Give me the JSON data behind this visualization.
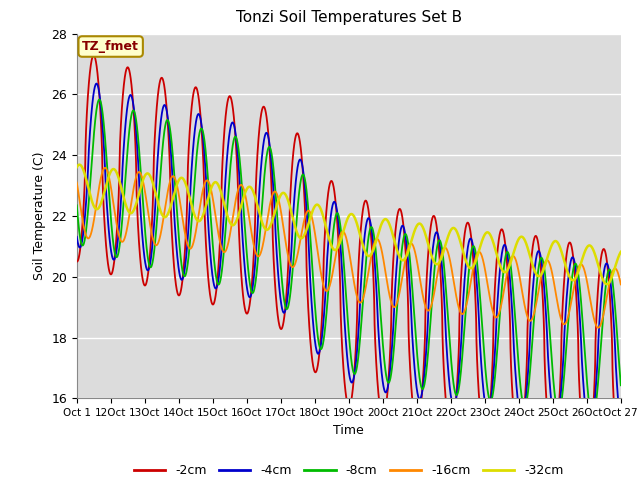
{
  "title": "Tonzi Soil Temperatures Set B",
  "xlabel": "Time",
  "ylabel": "Soil Temperature (C)",
  "ylim": [
    16,
    28
  ],
  "xlim": [
    0,
    384
  ],
  "annotation": "TZ_fmet",
  "bg_color": "#dcdcdc",
  "grid_color": "#ffffff",
  "series": [
    {
      "label": "-2cm",
      "color": "#cc0000",
      "lw": 1.3
    },
    {
      "label": "-4cm",
      "color": "#0000cc",
      "lw": 1.3
    },
    {
      "label": "-8cm",
      "color": "#00bb00",
      "lw": 1.3
    },
    {
      "label": "-16cm",
      "color": "#ff8800",
      "lw": 1.3
    },
    {
      "label": "-32cm",
      "color": "#dddd00",
      "lw": 1.8
    }
  ],
  "xtick_labels": [
    "Oct 1",
    "12Oct",
    "13Oct",
    "14Oct",
    "15Oct",
    "16Oct",
    "17Oct",
    "18Oct",
    "19Oct",
    "20Oct",
    "21Oct",
    "22Oct",
    "23Oct",
    "24Oct",
    "25Oct",
    "26Oct",
    "Oct 27"
  ],
  "ytick_positions": [
    16,
    18,
    20,
    22,
    24,
    26,
    28
  ]
}
